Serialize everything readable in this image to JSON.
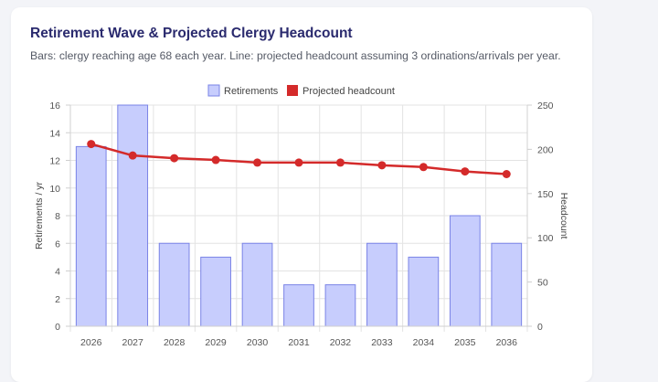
{
  "header": {
    "title": "Retirement Wave & Projected Clergy Headcount",
    "subtitle": "Bars: clergy reaching age 68 each year. Line: projected headcount assuming 3 ordinations/arrivals per year."
  },
  "chart_data": {
    "type": "bar",
    "categories": [
      "2026",
      "2027",
      "2028",
      "2029",
      "2030",
      "2031",
      "2032",
      "2033",
      "2034",
      "2035",
      "2036"
    ],
    "series": [
      {
        "name": "Retirements",
        "type": "bar",
        "axis": "left",
        "values": [
          13,
          16,
          6,
          5,
          6,
          3,
          3,
          6,
          5,
          8,
          6
        ]
      },
      {
        "name": "Projected headcount",
        "type": "line",
        "axis": "right",
        "values": [
          206,
          193,
          190,
          188,
          185,
          185,
          185,
          182,
          180,
          175,
          172
        ]
      }
    ],
    "ylabel": "Retirements / yr",
    "y2label": "Headcount",
    "ylim": [
      0,
      16
    ],
    "y2lim": [
      0,
      250
    ],
    "yticks": [
      "0",
      "2",
      "4",
      "6",
      "8",
      "10",
      "12",
      "14",
      "16"
    ],
    "y2ticks": [
      "0",
      "50",
      "100",
      "150",
      "200",
      "250"
    ],
    "grid": true,
    "legend_position": "top",
    "colors": {
      "bar_fill": "#c7cdfd",
      "bar_stroke": "#7a83e6",
      "line": "#d42a2a"
    }
  }
}
